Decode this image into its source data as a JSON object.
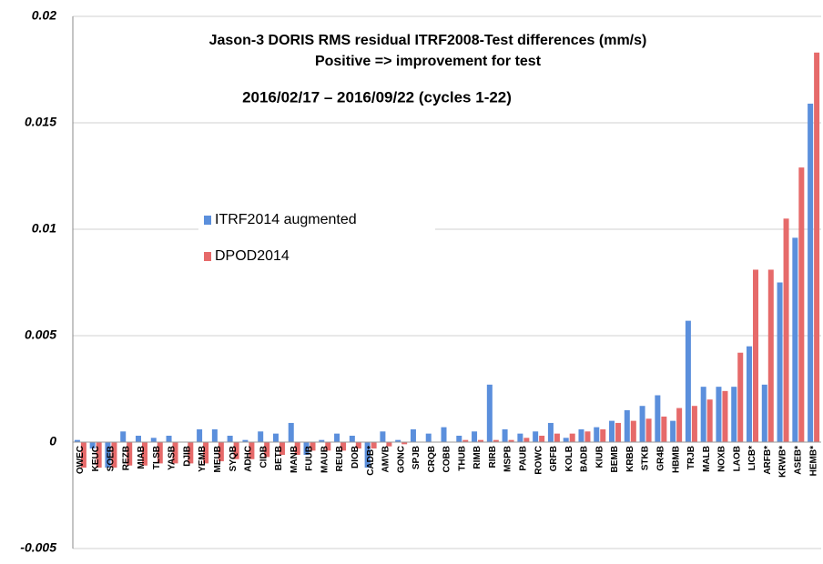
{
  "chart_data": {
    "type": "bar",
    "title": "Jason-3 DORIS RMS residual ITRF2008-Test differences (mm/s)",
    "subtitle": "Positive => improvement for test",
    "annotation": "2016/02/17 – 2016/09/22 (cycles 1-22)",
    "categories": [
      "OWEC",
      "KEUC",
      "SOEB",
      "REZB",
      "MIAB",
      "TLSB",
      "YASB",
      "DJIB",
      "YEMB",
      "MEUB",
      "SYQB",
      "ADHC",
      "CIDB",
      "BETB",
      "MANB",
      "FUUB",
      "MAUB",
      "REUB",
      "DIOB",
      "CADB*",
      "AMVB",
      "GONC",
      "SPJB",
      "CRQB",
      "COBB",
      "THUB",
      "RIMB",
      "RIRB",
      "MSPB",
      "PAUB",
      "ROWC",
      "GRFB",
      "KOLB",
      "BADB",
      "KIUB",
      "BEMB",
      "KRBB",
      "STKB",
      "GR4B",
      "HBMB",
      "TRJB",
      "MALB",
      "NOXB",
      "LAOB",
      "LICB*",
      "ARFB*",
      "KRWB*",
      "ASEB*",
      "HEMB*"
    ],
    "series": [
      {
        "name": "ITRF2014 augmented",
        "color": "#5b8fdc",
        "values": [
          0.0001,
          -0.0003,
          -0.0012,
          0.0005,
          0.0003,
          0.0002,
          0.0003,
          0.0,
          0.0006,
          0.0006,
          0.0003,
          0.0001,
          0.0005,
          0.0004,
          0.0009,
          -0.0006,
          0.0001,
          0.0004,
          0.0003,
          -0.0012,
          0.0005,
          0.0001,
          0.0006,
          0.0004,
          0.0007,
          0.0003,
          0.0005,
          0.0027,
          0.0006,
          0.0004,
          0.0005,
          0.0009,
          0.0002,
          0.0006,
          0.0007,
          0.001,
          0.0015,
          0.0017,
          0.0022,
          0.001,
          0.0057,
          0.0026,
          0.0026,
          0.0026,
          0.0045,
          0.0027,
          0.0075,
          0.0096,
          0.0159
        ]
      },
      {
        "name": "DPOD2014",
        "color": "#e66a6a",
        "values": [
          -0.0012,
          -0.0012,
          -0.0012,
          -0.0011,
          -0.0011,
          -0.001,
          -0.001,
          -0.001,
          -0.001,
          -0.0009,
          -0.0008,
          -0.0008,
          -0.0007,
          -0.0006,
          -0.0006,
          -0.0004,
          -0.0004,
          -0.0004,
          -0.0003,
          -0.0003,
          -0.0002,
          -0.0001,
          0.0,
          0.0,
          0.0,
          0.0001,
          0.0001,
          0.0001,
          0.0001,
          0.0002,
          0.0003,
          0.0004,
          0.0004,
          0.0005,
          0.0006,
          0.0009,
          0.001,
          0.0011,
          0.0012,
          0.0016,
          0.0017,
          0.002,
          0.0024,
          0.0042,
          0.0081,
          0.0081,
          0.0105,
          0.0129,
          0.0183
        ]
      }
    ],
    "ylim": [
      -0.005,
      0.02
    ],
    "yticks": [
      -0.005,
      0,
      0.005,
      0.01,
      0.015,
      0.02
    ],
    "grid": true
  }
}
